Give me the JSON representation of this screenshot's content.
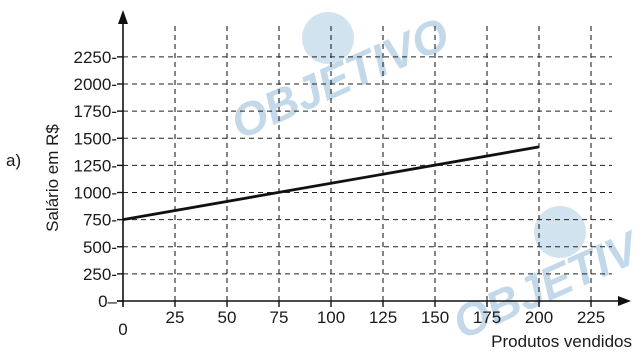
{
  "part_label": "a)",
  "watermark": {
    "text": "OBJETIVO"
  },
  "chart_data": {
    "type": "line",
    "title": "",
    "xlabel": "Produtos vendidos",
    "ylabel": "Salário em R$",
    "x_ticks": [
      25,
      50,
      75,
      100,
      125,
      150,
      175,
      200,
      225
    ],
    "x_origin_label": "0",
    "y_ticks": [
      0,
      250,
      500,
      750,
      1000,
      1250,
      1500,
      1750,
      2000,
      2250
    ],
    "xlim": [
      0,
      245
    ],
    "ylim": [
      0,
      2500
    ],
    "grid": true,
    "series": [
      {
        "x": [
          0,
          200
        ],
        "y": [
          750,
          1420
        ]
      }
    ]
  }
}
